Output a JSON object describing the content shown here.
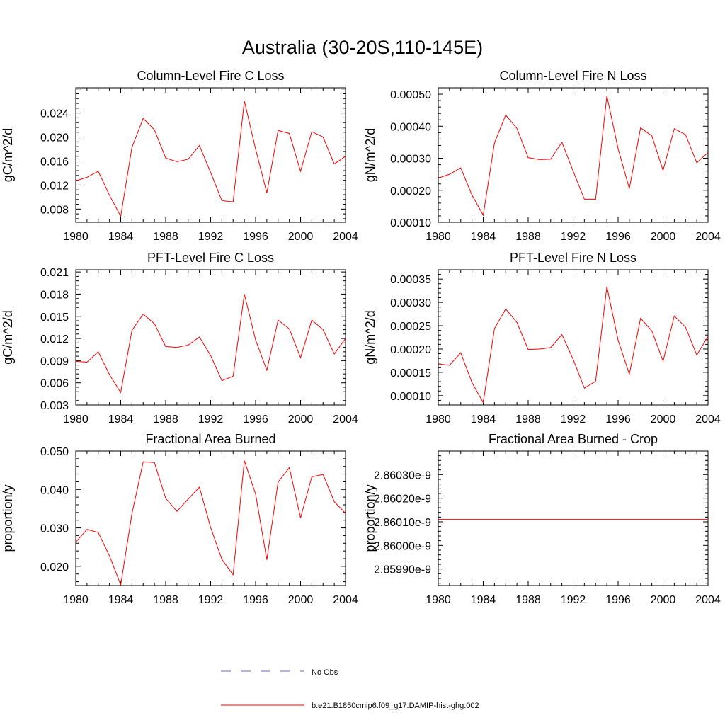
{
  "page_title": "Australia (30-20S,110-145E)",
  "line_color": "#ff0000",
  "obs_color": "#6a6ad0",
  "legend": {
    "obs_label": "No Obs",
    "model_label": "b.e21.B1850cmip6.f09_g17.DAMIP-hist-ghg.002"
  },
  "chart_data": [
    {
      "type": "line",
      "title": "Column-Level Fire C Loss",
      "ylabel": "gC/m^2/d",
      "xlim": [
        1980,
        2004
      ],
      "ylim": [
        0.0058,
        0.0282
      ],
      "xticks": [
        1980,
        1984,
        1988,
        1992,
        1996,
        2000,
        2004
      ],
      "xtick_labels": [
        "1980",
        "1984",
        "1988",
        "1992",
        "1996",
        "2000",
        "2004"
      ],
      "yticks": [
        0.008,
        0.012,
        0.016,
        0.02,
        0.024
      ],
      "ytick_labels": [
        "0.008",
        "0.012",
        "0.016",
        "0.020",
        "0.024"
      ],
      "x": [
        1980,
        1981,
        1982,
        1983,
        1984,
        1985,
        1986,
        1987,
        1988,
        1989,
        1990,
        1991,
        1992,
        1993,
        1994,
        1995,
        1996,
        1997,
        1998,
        1999,
        2000,
        2001,
        2002,
        2003,
        2004
      ],
      "values": [
        0.0127,
        0.0133,
        0.0143,
        0.0103,
        0.0068,
        0.0183,
        0.0231,
        0.0212,
        0.0165,
        0.0159,
        0.0163,
        0.0186,
        0.0141,
        0.0094,
        0.0092,
        0.026,
        0.018,
        0.0107,
        0.0211,
        0.0206,
        0.0143,
        0.0209,
        0.02,
        0.0155,
        0.0168
      ]
    },
    {
      "type": "line",
      "title": "Column-Level Fire N Loss",
      "ylabel": "gN/m^2/d",
      "xlim": [
        1980,
        2004
      ],
      "ylim": [
        0.0001,
        0.00052
      ],
      "xticks": [
        1980,
        1984,
        1988,
        1992,
        1996,
        2000,
        2004
      ],
      "xtick_labels": [
        "1980",
        "1984",
        "1988",
        "1992",
        "1996",
        "2000",
        "2004"
      ],
      "yticks": [
        0.0001,
        0.0002,
        0.0003,
        0.0004,
        0.0005
      ],
      "ytick_labels": [
        "0.00010",
        "0.00020",
        "0.00030",
        "0.00040",
        "0.00050"
      ],
      "x": [
        1980,
        1981,
        1982,
        1983,
        1984,
        1985,
        1986,
        1987,
        1988,
        1989,
        1990,
        1991,
        1992,
        1993,
        1994,
        1995,
        1996,
        1997,
        1998,
        1999,
        2000,
        2001,
        2002,
        2003,
        2004
      ],
      "values": [
        0.000238,
        0.00025,
        0.00027,
        0.000185,
        0.000122,
        0.000348,
        0.000435,
        0.000393,
        0.000302,
        0.000296,
        0.000297,
        0.00035,
        0.00026,
        0.000172,
        0.000172,
        0.000495,
        0.00033,
        0.000205,
        0.000395,
        0.00037,
        0.000262,
        0.000392,
        0.000374,
        0.000286,
        0.000318
      ]
    },
    {
      "type": "line",
      "title": "PFT-Level Fire C Loss",
      "ylabel": "gC/m^2/d",
      "xlim": [
        1980,
        2004
      ],
      "ylim": [
        0.003,
        0.0213
      ],
      "xticks": [
        1980,
        1984,
        1988,
        1992,
        1996,
        2000,
        2004
      ],
      "xtick_labels": [
        "1980",
        "1984",
        "1988",
        "1992",
        "1996",
        "2000",
        "2004"
      ],
      "yticks": [
        0.003,
        0.006,
        0.009,
        0.012,
        0.015,
        0.018,
        0.021
      ],
      "ytick_labels": [
        "0.003",
        "0.006",
        "0.009",
        "0.012",
        "0.015",
        "0.018",
        "0.021"
      ],
      "x": [
        1980,
        1981,
        1982,
        1983,
        1984,
        1985,
        1986,
        1987,
        1988,
        1989,
        1990,
        1991,
        1992,
        1993,
        1994,
        1995,
        1996,
        1997,
        1998,
        1999,
        2000,
        2001,
        2002,
        2003,
        2004
      ],
      "values": [
        0.0089,
        0.0088,
        0.0102,
        0.0071,
        0.0047,
        0.0131,
        0.0153,
        0.014,
        0.0109,
        0.0108,
        0.0111,
        0.0122,
        0.0097,
        0.0063,
        0.0069,
        0.018,
        0.0118,
        0.0077,
        0.0145,
        0.0133,
        0.0094,
        0.0145,
        0.0132,
        0.0099,
        0.012
      ]
    },
    {
      "type": "line",
      "title": "PFT-Level Fire N Loss",
      "ylabel": "gN/m^2/d",
      "xlim": [
        1980,
        2004
      ],
      "ylim": [
        8e-05,
        0.00037
      ],
      "xticks": [
        1980,
        1984,
        1988,
        1992,
        1996,
        2000,
        2004
      ],
      "xtick_labels": [
        "1980",
        "1984",
        "1988",
        "1992",
        "1996",
        "2000",
        "2004"
      ],
      "yticks": [
        0.0001,
        0.00015,
        0.0002,
        0.00025,
        0.0003,
        0.00035
      ],
      "ytick_labels": [
        "0.00010",
        "0.00015",
        "0.00020",
        "0.00025",
        "0.00030",
        "0.00035"
      ],
      "x": [
        1980,
        1981,
        1982,
        1983,
        1984,
        1985,
        1986,
        1987,
        1988,
        1989,
        1990,
        1991,
        1992,
        1993,
        1994,
        1995,
        1996,
        1997,
        1998,
        1999,
        2000,
        2001,
        2002,
        2003,
        2004
      ],
      "values": [
        0.000168,
        0.000165,
        0.000192,
        0.000128,
        8.5e-05,
        0.000244,
        0.000286,
        0.000257,
        0.000199,
        0.0002,
        0.000203,
        0.000231,
        0.000178,
        0.000116,
        0.000131,
        0.000334,
        0.000219,
        0.000146,
        0.000266,
        0.000239,
        0.000174,
        0.000271,
        0.000247,
        0.000187,
        0.000227
      ]
    },
    {
      "type": "line",
      "title": "Fractional Area Burned",
      "ylabel": "proportion/y",
      "xlim": [
        1980,
        2004
      ],
      "ylim": [
        0.015,
        0.05
      ],
      "xticks": [
        1980,
        1984,
        1988,
        1992,
        1996,
        2000,
        2004
      ],
      "xtick_labels": [
        "1980",
        "1984",
        "1988",
        "1992",
        "1996",
        "2000",
        "2004"
      ],
      "yticks": [
        0.02,
        0.03,
        0.04,
        0.05
      ],
      "ytick_labels": [
        "0.020",
        "0.030",
        "0.040",
        "0.050"
      ],
      "x": [
        1980,
        1981,
        1982,
        1983,
        1984,
        1985,
        1986,
        1987,
        1988,
        1989,
        1990,
        1991,
        1992,
        1993,
        1994,
        1995,
        1996,
        1997,
        1998,
        1999,
        2000,
        2001,
        2002,
        2003,
        2004
      ],
      "values": [
        0.0263,
        0.0296,
        0.0288,
        0.0227,
        0.0152,
        0.0337,
        0.0472,
        0.047,
        0.0377,
        0.0343,
        0.0375,
        0.0406,
        0.0301,
        0.0218,
        0.0178,
        0.0475,
        0.0388,
        0.0217,
        0.0419,
        0.0457,
        0.0326,
        0.0433,
        0.0439,
        0.0368,
        0.0338
      ]
    },
    {
      "type": "line",
      "title": "Fractional Area Burned - Crop",
      "ylabel": "proportion/y",
      "xlim": [
        1980,
        2004
      ],
      "ylim": [
        2.85983e-09,
        2.8604e-09
      ],
      "xticks": [
        1980,
        1984,
        1988,
        1992,
        1996,
        2000,
        2004
      ],
      "xtick_labels": [
        "1980",
        "1984",
        "1988",
        "1992",
        "1996",
        "2000",
        "2004"
      ],
      "yticks": [
        2.8599e-09,
        2.86e-09,
        2.8601e-09,
        2.8602e-09,
        2.8603e-09
      ],
      "ytick_labels": [
        "2.85990e-9",
        "2.86000e-9",
        "2.86010e-9",
        "2.86020e-9",
        "2.86030e-9"
      ],
      "x": [
        1980,
        2004
      ],
      "values": [
        2.86011e-09,
        2.86011e-09
      ]
    }
  ]
}
